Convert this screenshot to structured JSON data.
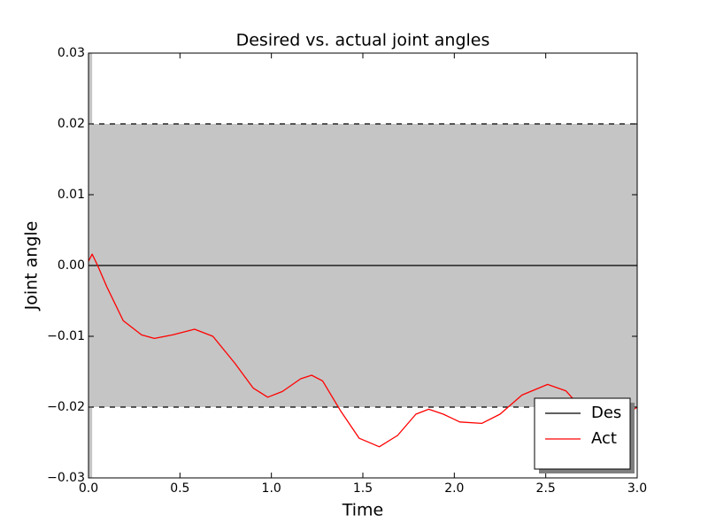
{
  "chart_data": {
    "type": "line",
    "title": "Desired vs. actual joint angles",
    "xlabel": "Time",
    "ylabel": "Joint angle",
    "xlim": [
      0,
      3
    ],
    "ylim": [
      -0.03,
      0.03
    ],
    "xticks": [
      {
        "value": 0,
        "label": "0.0"
      },
      {
        "value": 0.5,
        "label": "0.5"
      },
      {
        "value": 1,
        "label": "1.0"
      },
      {
        "value": 1.5,
        "label": "1.5"
      },
      {
        "value": 2,
        "label": "2.0"
      },
      {
        "value": 2.5,
        "label": "2.5"
      },
      {
        "value": 3,
        "label": "3.0"
      }
    ],
    "yticks": [
      {
        "value": -0.03,
        "label": "−0.03"
      },
      {
        "value": -0.02,
        "label": "−0.02"
      },
      {
        "value": -0.01,
        "label": "−0.01"
      },
      {
        "value": 0,
        "label": "0.00"
      },
      {
        "value": 0.01,
        "label": "0.01"
      },
      {
        "value": 0.02,
        "label": "0.02"
      },
      {
        "value": 0.03,
        "label": "0.03"
      }
    ],
    "bands": [
      {
        "orientation": "horizontal",
        "range": [
          -0.02,
          0.02
        ],
        "color": "#c5c5c5",
        "edgestyle": "dashed"
      },
      {
        "orientation": "vertical",
        "range": [
          0,
          0.02
        ],
        "color": "#c5c5c5",
        "edgestyle": "none"
      }
    ],
    "series": [
      {
        "name": "Des",
        "color": "#000000",
        "x": [
          0,
          3
        ],
        "values": [
          0,
          0
        ]
      },
      {
        "name": "Act",
        "color": "#ff0000",
        "x": [
          0,
          0.02,
          0.05,
          0.1,
          0.19,
          0.29,
          0.36,
          0.46,
          0.58,
          0.68,
          0.8,
          0.9,
          0.98,
          1.06,
          1.16,
          1.22,
          1.28,
          1.38,
          1.48,
          1.59,
          1.69,
          1.79,
          1.86,
          1.94,
          2.03,
          2.15,
          2.25,
          2.37,
          2.51,
          2.61,
          2.71,
          2.81,
          2.9,
          3.0
        ],
        "values": [
          0.0006,
          0.0016,
          0.0,
          -0.003,
          -0.0078,
          -0.0098,
          -0.0103,
          -0.0098,
          -0.009,
          -0.01,
          -0.0138,
          -0.0173,
          -0.0186,
          -0.0178,
          -0.016,
          -0.0155,
          -0.0163,
          -0.0206,
          -0.0244,
          -0.0256,
          -0.024,
          -0.021,
          -0.0203,
          -0.021,
          -0.0221,
          -0.0223,
          -0.021,
          -0.0183,
          -0.0168,
          -0.0177,
          -0.0206,
          -0.0223,
          -0.0218,
          -0.02
        ]
      }
    ],
    "legend": "lower right"
  }
}
